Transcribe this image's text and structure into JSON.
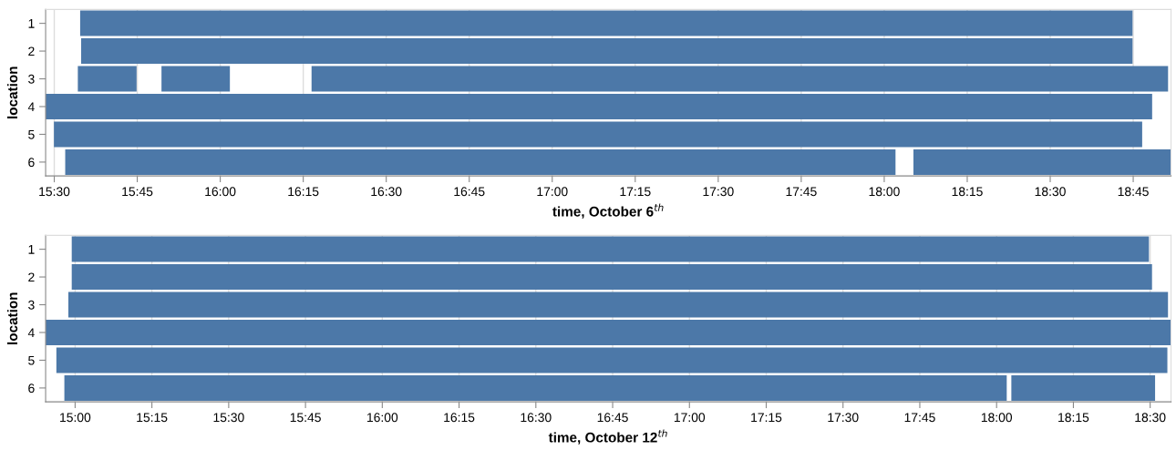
{
  "chart_data": [
    {
      "type": "bar",
      "orientation": "horizontal",
      "xlabel": "time, October 6$^{th}$",
      "ylabel": "location",
      "categories": [
        "1",
        "2",
        "3",
        "4",
        "5",
        "6"
      ],
      "grid": "x",
      "xlim": [
        15.474,
        18.864
      ],
      "xticks": [
        {
          "value": 15.5,
          "label": "15:30"
        },
        {
          "value": 15.75,
          "label": "15:45"
        },
        {
          "value": 16,
          "label": "16:00"
        },
        {
          "value": 16.25,
          "label": "16:15"
        },
        {
          "value": 16.5,
          "label": "16:30"
        },
        {
          "value": 16.75,
          "label": "16:45"
        },
        {
          "value": 17,
          "label": "17:00"
        },
        {
          "value": 17.25,
          "label": "17:15"
        },
        {
          "value": 17.5,
          "label": "17:30"
        },
        {
          "value": 17.75,
          "label": "17:45"
        },
        {
          "value": 18,
          "label": "18:00"
        },
        {
          "value": 18.25,
          "label": "18:15"
        },
        {
          "value": 18.5,
          "label": "18:30"
        },
        {
          "value": 18.75,
          "label": "18:45"
        }
      ],
      "series": [
        {
          "color": "#4c78a8",
          "base": [
            15.578,
            15.581,
            15.571,
            15.474,
            15.499,
            15.533
          ],
          "values": [
            3.17,
            3.167,
            0.177,
            3.333,
            3.278,
            2.501
          ]
        },
        {
          "color": "#4c78a8",
          "base": [
            null,
            null,
            15.823,
            null,
            null,
            18.088
          ],
          "values": [
            null,
            null,
            0.206,
            null,
            null,
            0.776
          ]
        },
        {
          "color": "#4c78a8",
          "base": [
            null,
            null,
            16.275,
            null,
            null,
            null
          ],
          "values": [
            null,
            null,
            2.58,
            null,
            null,
            null
          ]
        }
      ]
    },
    {
      "type": "bar",
      "orientation": "horizontal",
      "xlabel": "time, October 12$^{th}$",
      "ylabel": "location",
      "categories": [
        "1",
        "2",
        "3",
        "4",
        "5",
        "6"
      ],
      "grid": "x",
      "xlim": [
        14.904,
        18.568
      ],
      "xticks": [
        {
          "value": 15,
          "label": "15:00"
        },
        {
          "value": 15.25,
          "label": "15:15"
        },
        {
          "value": 15.5,
          "label": "15:30"
        },
        {
          "value": 15.75,
          "label": "15:45"
        },
        {
          "value": 16,
          "label": "16:00"
        },
        {
          "value": 16.25,
          "label": "16:15"
        },
        {
          "value": 16.5,
          "label": "16:30"
        },
        {
          "value": 16.75,
          "label": "16:45"
        },
        {
          "value": 17,
          "label": "17:00"
        },
        {
          "value": 17.25,
          "label": "17:15"
        },
        {
          "value": 17.5,
          "label": "17:30"
        },
        {
          "value": 17.75,
          "label": "17:45"
        },
        {
          "value": 18,
          "label": "18:00"
        },
        {
          "value": 18.25,
          "label": "18:15"
        },
        {
          "value": 18.5,
          "label": "18:30"
        }
      ],
      "series": [
        {
          "color": "#4c78a8",
          "base": [
            14.989,
            14.989,
            14.978,
            14.904,
            14.939,
            14.965
          ],
          "values": [
            3.507,
            3.517,
            3.58,
            3.664,
            3.617,
            3.068
          ]
        },
        {
          "color": "#4c78a8",
          "base": [
            null,
            null,
            null,
            null,
            null,
            18.048
          ],
          "values": [
            null,
            null,
            null,
            null,
            null,
            0.468
          ]
        }
      ]
    }
  ]
}
